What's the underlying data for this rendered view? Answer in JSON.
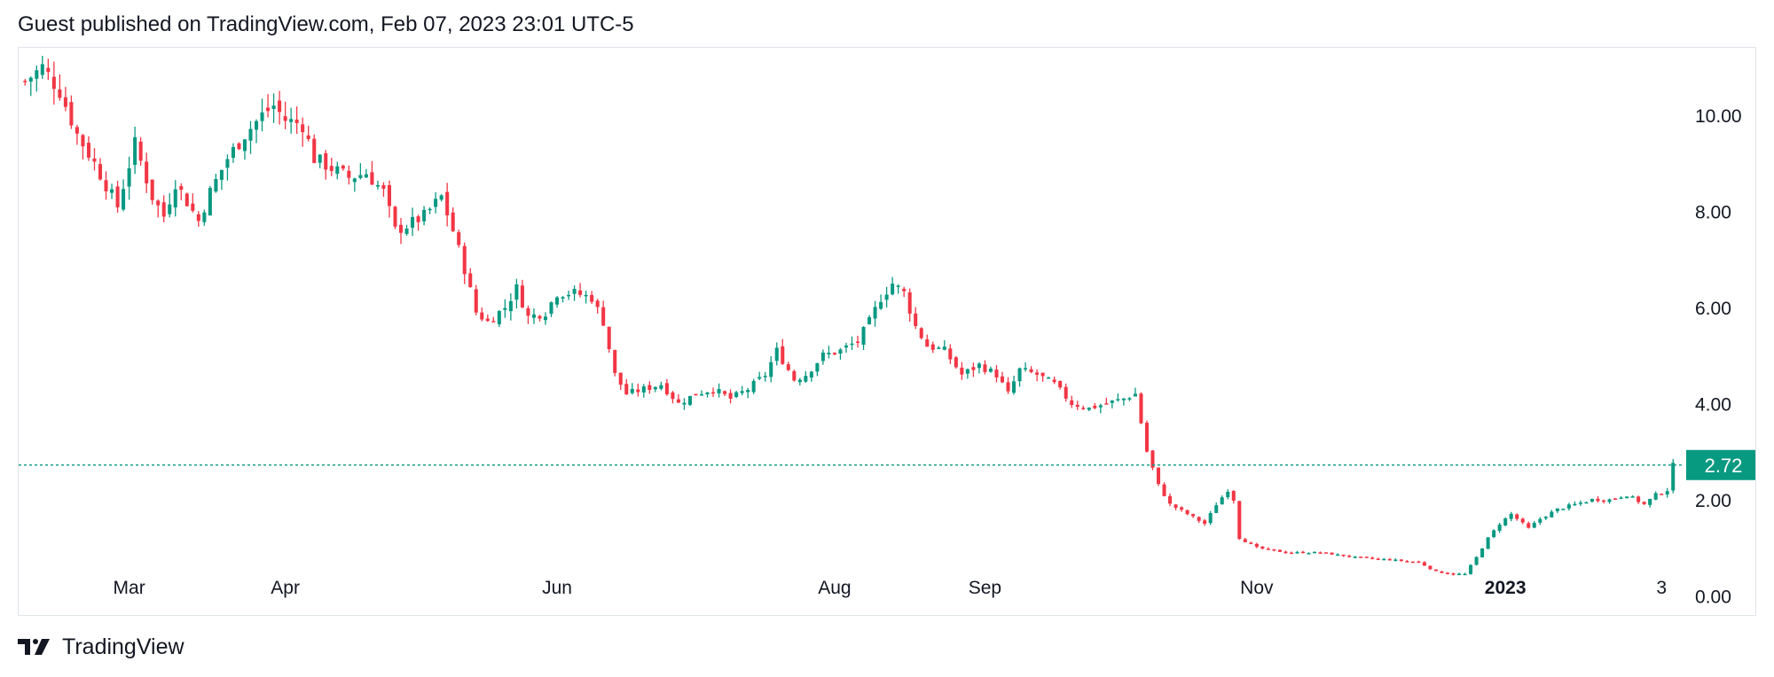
{
  "header": {
    "text": "Guest published on TradingView.com, Feb 07, 2023 23:01 UTC-5"
  },
  "footer": {
    "brand": "TradingView",
    "logo_icon": "tradingview-logo-icon"
  },
  "colors": {
    "up": "#26a69a",
    "up_dark": "#089981",
    "down": "#f23645",
    "label_bg": "#089981",
    "axis_text": "#131722",
    "border": "#e0e3eb"
  },
  "chart_data": {
    "type": "candlestick",
    "title": "",
    "ylim": [
      -0.4,
      11.4
    ],
    "y_ticks": [
      0,
      2,
      4,
      6,
      8,
      10
    ],
    "y_tick_labels": [
      "0.00",
      "2.00",
      "4.00",
      "6.00",
      "8.00",
      "10.00"
    ],
    "x_tick_labels": [
      {
        "label": "Mar",
        "index": 18,
        "bold": false
      },
      {
        "label": "Apr",
        "index": 45,
        "bold": false
      },
      {
        "label": "Jun",
        "index": 92,
        "bold": false
      },
      {
        "label": "Aug",
        "index": 140,
        "bold": false
      },
      {
        "label": "Sep",
        "index": 166,
        "bold": false
      },
      {
        "label": "Nov",
        "index": 213,
        "bold": false
      },
      {
        "label": "2023",
        "index": 256,
        "bold": true
      },
      {
        "label": "3",
        "index": 283,
        "bold": false
      }
    ],
    "last_price": 2.72,
    "last_price_label": "2.72",
    "anchors": [
      [
        0,
        10.7
      ],
      [
        3,
        11.0
      ],
      [
        6,
        10.5
      ],
      [
        9,
        9.6
      ],
      [
        12,
        9.0
      ],
      [
        16,
        8.1
      ],
      [
        19,
        9.4
      ],
      [
        22,
        8.3
      ],
      [
        24,
        7.9
      ],
      [
        26,
        8.6
      ],
      [
        28,
        8.2
      ],
      [
        30,
        7.8
      ],
      [
        32,
        8.4
      ],
      [
        35,
        9.1
      ],
      [
        38,
        9.6
      ],
      [
        41,
        10.0
      ],
      [
        43,
        10.2
      ],
      [
        45,
        9.9
      ],
      [
        48,
        9.8
      ],
      [
        50,
        9.1
      ],
      [
        53,
        8.9
      ],
      [
        56,
        8.7
      ],
      [
        59,
        8.8
      ],
      [
        62,
        8.4
      ],
      [
        64,
        7.6
      ],
      [
        66,
        7.7
      ],
      [
        69,
        7.9
      ],
      [
        72,
        8.3
      ],
      [
        74,
        7.6
      ],
      [
        76,
        6.8
      ],
      [
        78,
        5.9
      ],
      [
        80,
        5.7
      ],
      [
        83,
        6.0
      ],
      [
        85,
        6.4
      ],
      [
        87,
        5.8
      ],
      [
        90,
        5.9
      ],
      [
        92,
        6.3
      ],
      [
        95,
        6.3
      ],
      [
        98,
        6.2
      ],
      [
        100,
        5.7
      ],
      [
        102,
        4.6
      ],
      [
        104,
        4.2
      ],
      [
        107,
        4.3
      ],
      [
        110,
        4.4
      ],
      [
        113,
        4.0
      ],
      [
        116,
        4.2
      ],
      [
        119,
        4.3
      ],
      [
        122,
        4.1
      ],
      [
        125,
        4.3
      ],
      [
        128,
        4.6
      ],
      [
        130,
        5.1
      ],
      [
        133,
        4.5
      ],
      [
        135,
        4.6
      ],
      [
        138,
        5.0
      ],
      [
        141,
        5.1
      ],
      [
        144,
        5.3
      ],
      [
        146,
        5.7
      ],
      [
        148,
        6.2
      ],
      [
        150,
        6.5
      ],
      [
        152,
        6.3
      ],
      [
        154,
        5.6
      ],
      [
        156,
        5.2
      ],
      [
        159,
        5.1
      ],
      [
        162,
        4.6
      ],
      [
        165,
        4.8
      ],
      [
        168,
        4.6
      ],
      [
        170,
        4.2
      ],
      [
        172,
        4.7
      ],
      [
        175,
        4.6
      ],
      [
        178,
        4.4
      ],
      [
        181,
        4.0
      ],
      [
        184,
        3.9
      ],
      [
        187,
        4.0
      ],
      [
        190,
        4.1
      ],
      [
        192,
        4.2
      ],
      [
        194,
        3.0
      ],
      [
        196,
        2.3
      ],
      [
        198,
        1.9
      ],
      [
        201,
        1.7
      ],
      [
        204,
        1.5
      ],
      [
        206,
        1.9
      ],
      [
        208,
        2.2
      ],
      [
        209,
        2.0
      ],
      [
        210,
        1.2
      ],
      [
        213,
        1.0
      ],
      [
        218,
        0.9
      ],
      [
        224,
        0.9
      ],
      [
        230,
        0.8
      ],
      [
        236,
        0.75
      ],
      [
        241,
        0.7
      ],
      [
        244,
        0.5
      ],
      [
        247,
        0.45
      ],
      [
        249,
        0.45
      ],
      [
        251,
        0.8
      ],
      [
        253,
        1.2
      ],
      [
        255,
        1.5
      ],
      [
        257,
        1.7
      ],
      [
        260,
        1.4
      ],
      [
        262,
        1.6
      ],
      [
        265,
        1.8
      ],
      [
        268,
        1.9
      ],
      [
        271,
        2.0
      ],
      [
        274,
        2.0
      ],
      [
        277,
        2.1
      ],
      [
        280,
        1.9
      ],
      [
        282,
        2.1
      ],
      [
        284,
        2.2
      ],
      [
        285,
        2.72
      ]
    ]
  }
}
